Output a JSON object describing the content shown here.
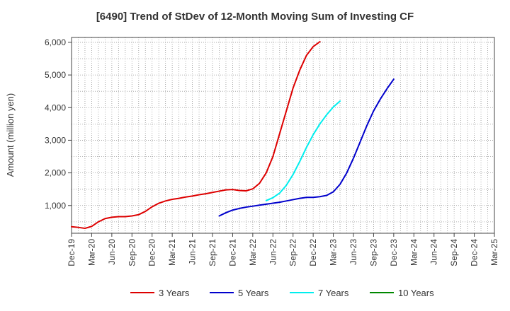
{
  "chart_data": {
    "type": "line",
    "title": "[6490]  Trend of StDev of 12-Month Moving Sum of Investing CF",
    "xlabel": "",
    "ylabel": "Amount (million yen)",
    "ylim": [
      150,
      6150
    ],
    "yticks": [
      1000,
      2000,
      3000,
      4000,
      5000,
      6000
    ],
    "ytick_labels": [
      "1,000",
      "2,000",
      "3,000",
      "4,000",
      "5,000",
      "6,000"
    ],
    "xticks": [
      "Dec-19",
      "Mar-20",
      "Jun-20",
      "Sep-20",
      "Dec-20",
      "Mar-21",
      "Jun-21",
      "Sep-21",
      "Dec-21",
      "Mar-22",
      "Jun-22",
      "Sep-22",
      "Dec-22",
      "Mar-23",
      "Jun-23",
      "Sep-23",
      "Dec-23",
      "Mar-24",
      "Jun-24",
      "Sep-24",
      "Dec-24",
      "Mar-25"
    ],
    "grid": true,
    "legend_position": "bottom",
    "series": [
      {
        "name": "3 Years",
        "color": "#dd0000",
        "start_index": 0,
        "values": [
          350,
          330,
          300,
          360,
          500,
          600,
          640,
          660,
          660,
          680,
          720,
          820,
          960,
          1070,
          1140,
          1190,
          1220,
          1260,
          1290,
          1330,
          1360,
          1400,
          1440,
          1480,
          1490,
          1460,
          1450,
          1510,
          1680,
          2000,
          2500,
          3200,
          3900,
          4600,
          5150,
          5600,
          5870,
          6020
        ]
      },
      {
        "name": "5 Years",
        "color": "#0000cc",
        "start_index": 22,
        "values": [
          680,
          780,
          860,
          910,
          950,
          980,
          1010,
          1040,
          1070,
          1100,
          1140,
          1180,
          1220,
          1250,
          1250,
          1270,
          1310,
          1420,
          1650,
          2000,
          2450,
          2950,
          3450,
          3900,
          4260,
          4580,
          4870
        ]
      },
      {
        "name": "7 Years",
        "color": "#00eeee",
        "start_index": 29,
        "values": [
          1150,
          1240,
          1380,
          1620,
          1950,
          2350,
          2780,
          3170,
          3500,
          3780,
          4020,
          4200
        ]
      },
      {
        "name": "10 Years",
        "color": "#008800",
        "start_index": 0,
        "values": []
      }
    ]
  }
}
